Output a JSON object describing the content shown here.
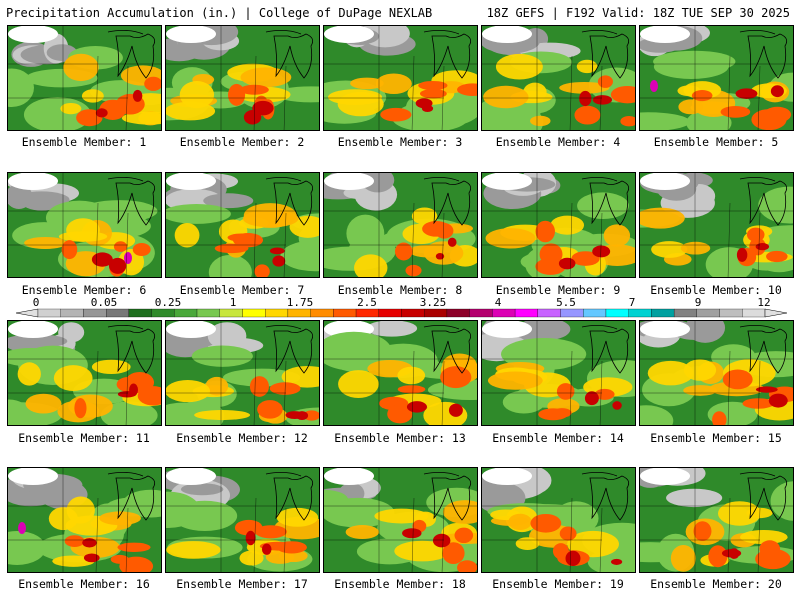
{
  "header": {
    "title": "Precipitation Accumulation (in.) | College of DuPage NEXLAB",
    "run_info": "18Z GEFS | F192 Valid: 18Z TUE SEP 30 2025"
  },
  "panels": [
    {
      "label": "Ensemble Member: 1"
    },
    {
      "label": "Ensemble Member: 2"
    },
    {
      "label": "Ensemble Member: 3"
    },
    {
      "label": "Ensemble Member: 4"
    },
    {
      "label": "Ensemble Member: 5"
    },
    {
      "label": "Ensemble Member: 6"
    },
    {
      "label": "Ensemble Member: 7"
    },
    {
      "label": "Ensemble Member: 8"
    },
    {
      "label": "Ensemble Member: 9"
    },
    {
      "label": "Ensemble Member: 10"
    },
    {
      "label": "Ensemble Member: 11"
    },
    {
      "label": "Ensemble Member: 12"
    },
    {
      "label": "Ensemble Member: 13"
    },
    {
      "label": "Ensemble Member: 14"
    },
    {
      "label": "Ensemble Member: 15"
    },
    {
      "label": "Ensemble Member: 16"
    },
    {
      "label": "Ensemble Member: 17"
    },
    {
      "label": "Ensemble Member: 18"
    },
    {
      "label": "Ensemble Member: 19"
    },
    {
      "label": "Ensemble Member: 20"
    }
  ],
  "legend": {
    "tick_labels": [
      "0",
      "0.05",
      "0.25",
      "1",
      "1.75",
      "2.5",
      "3.25",
      "4",
      "5.5",
      "7",
      "9",
      "12"
    ],
    "colors": [
      "#d0d0d0",
      "#b4b4b4",
      "#969696",
      "#787878",
      "#1e6e1e",
      "#2f8a2a",
      "#4aa83a",
      "#78c850",
      "#c8e63c",
      "#ffff00",
      "#ffd700",
      "#ffb400",
      "#ff8c00",
      "#ff5a00",
      "#ff2800",
      "#e60000",
      "#c80000",
      "#aa0000",
      "#8c0028",
      "#b4006e",
      "#dc00b4",
      "#ff00ff",
      "#c864ff",
      "#9696ff",
      "#64c8ff",
      "#00ffff",
      "#00d2d2",
      "#00a0a0",
      "#828282",
      "#a0a0a0",
      "#bebebe",
      "#dcdcdc"
    ]
  }
}
